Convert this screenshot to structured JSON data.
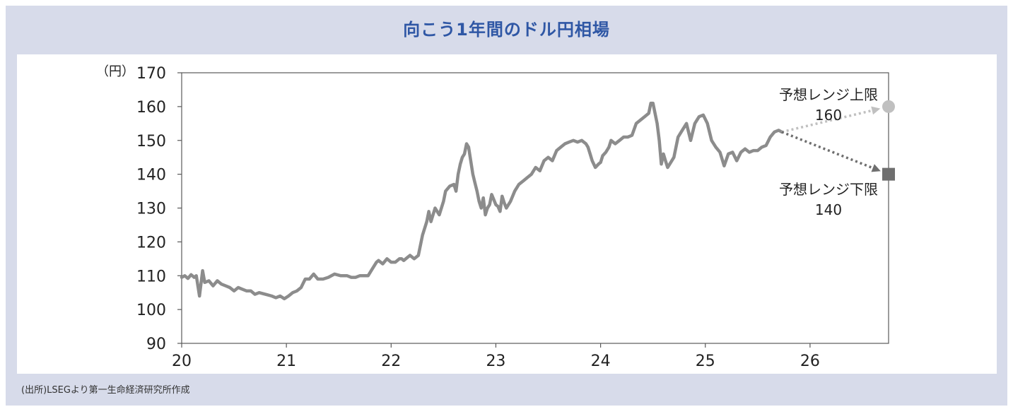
{
  "title": "向こう1年間のドル円相場",
  "source_note": "(出所)LSEGより第一生命経済研究所作成",
  "colors": {
    "frame_bg": "#d7dbea",
    "title": "#2f57a5",
    "line": "#8c8c8c",
    "upper_forecast": "#c0c0c0",
    "lower_forecast": "#6f6f6f"
  },
  "chart_data": {
    "type": "line",
    "title": "向こう1年間のドル円相場",
    "y_unit_label": "（円）",
    "ylim": [
      90,
      170
    ],
    "xlim": [
      20,
      26.75
    ],
    "y_ticks": [
      90,
      100,
      110,
      120,
      130,
      140,
      150,
      160,
      170
    ],
    "x_ticks": [
      20,
      21,
      22,
      23,
      24,
      25,
      26
    ],
    "x_tick_labels": [
      "20",
      "21",
      "22",
      "23",
      "24",
      "25",
      "26"
    ],
    "grid": false,
    "series": [
      {
        "values": [
          [
            20.0,
            109.5
          ],
          [
            20.03,
            110
          ],
          [
            20.06,
            109.2
          ],
          [
            20.09,
            110.3
          ],
          [
            20.12,
            109.5
          ],
          [
            20.14,
            110
          ],
          [
            20.17,
            104
          ],
          [
            20.2,
            111.5
          ],
          [
            20.22,
            108
          ],
          [
            20.26,
            108.5
          ],
          [
            20.3,
            107
          ],
          [
            20.34,
            108.5
          ],
          [
            20.38,
            107.5
          ],
          [
            20.42,
            107
          ],
          [
            20.46,
            106.5
          ],
          [
            20.5,
            105.5
          ],
          [
            20.54,
            106.5
          ],
          [
            20.58,
            106
          ],
          [
            20.62,
            105.5
          ],
          [
            20.66,
            105.5
          ],
          [
            20.7,
            104.5
          ],
          [
            20.74,
            105
          ],
          [
            20.8,
            104.5
          ],
          [
            20.86,
            104
          ],
          [
            20.9,
            103.5
          ],
          [
            20.94,
            104
          ],
          [
            20.98,
            103.2
          ],
          [
            21.02,
            104
          ],
          [
            21.06,
            105
          ],
          [
            21.1,
            105.5
          ],
          [
            21.14,
            106.5
          ],
          [
            21.18,
            109
          ],
          [
            21.22,
            109
          ],
          [
            21.26,
            110.5
          ],
          [
            21.3,
            109
          ],
          [
            21.35,
            109
          ],
          [
            21.4,
            109.5
          ],
          [
            21.46,
            110.5
          ],
          [
            21.52,
            110
          ],
          [
            21.58,
            110
          ],
          [
            21.62,
            109.5
          ],
          [
            21.66,
            109.5
          ],
          [
            21.7,
            110
          ],
          [
            21.74,
            110
          ],
          [
            21.78,
            110
          ],
          [
            21.82,
            112
          ],
          [
            21.86,
            114
          ],
          [
            21.88,
            114.5
          ],
          [
            21.92,
            113.5
          ],
          [
            21.96,
            115
          ],
          [
            22.0,
            114
          ],
          [
            22.04,
            114
          ],
          [
            22.08,
            115
          ],
          [
            22.1,
            115
          ],
          [
            22.12,
            114.5
          ],
          [
            22.16,
            115.5
          ],
          [
            22.18,
            116
          ],
          [
            22.22,
            115
          ],
          [
            22.26,
            116
          ],
          [
            22.3,
            122
          ],
          [
            22.34,
            126
          ],
          [
            22.36,
            129
          ],
          [
            22.38,
            126
          ],
          [
            22.42,
            130
          ],
          [
            22.46,
            128
          ],
          [
            22.5,
            132
          ],
          [
            22.52,
            135
          ],
          [
            22.56,
            136.5
          ],
          [
            22.6,
            137
          ],
          [
            22.62,
            135
          ],
          [
            22.64,
            140
          ],
          [
            22.66,
            143
          ],
          [
            22.68,
            145
          ],
          [
            22.7,
            146
          ],
          [
            22.72,
            149
          ],
          [
            22.74,
            148
          ],
          [
            22.76,
            144
          ],
          [
            22.78,
            140
          ],
          [
            22.8,
            137.5
          ],
          [
            22.82,
            135
          ],
          [
            22.84,
            132
          ],
          [
            22.86,
            130
          ],
          [
            22.88,
            133
          ],
          [
            22.9,
            128
          ],
          [
            22.92,
            130
          ],
          [
            22.94,
            131
          ],
          [
            22.96,
            134
          ],
          [
            22.98,
            132.5
          ],
          [
            23.0,
            131
          ],
          [
            23.02,
            130.5
          ],
          [
            23.04,
            129
          ],
          [
            23.06,
            133.5
          ],
          [
            23.08,
            131.5
          ],
          [
            23.1,
            130
          ],
          [
            23.14,
            132
          ],
          [
            23.18,
            135
          ],
          [
            23.22,
            137
          ],
          [
            23.26,
            138
          ],
          [
            23.3,
            139
          ],
          [
            23.34,
            140
          ],
          [
            23.38,
            142
          ],
          [
            23.42,
            141
          ],
          [
            23.46,
            144
          ],
          [
            23.5,
            145
          ],
          [
            23.54,
            144
          ],
          [
            23.58,
            147
          ],
          [
            23.62,
            148
          ],
          [
            23.66,
            149
          ],
          [
            23.7,
            149.5
          ],
          [
            23.74,
            150
          ],
          [
            23.78,
            149.5
          ],
          [
            23.82,
            150
          ],
          [
            23.86,
            149
          ],
          [
            23.88,
            148
          ],
          [
            23.9,
            146
          ],
          [
            23.92,
            144
          ],
          [
            23.95,
            142
          ],
          [
            23.98,
            143
          ],
          [
            24.0,
            143.5
          ],
          [
            24.02,
            145.5
          ],
          [
            24.05,
            146.5
          ],
          [
            24.08,
            148
          ],
          [
            24.1,
            150
          ],
          [
            24.14,
            149
          ],
          [
            24.18,
            150
          ],
          [
            24.22,
            151
          ],
          [
            24.26,
            151
          ],
          [
            24.3,
            151.5
          ],
          [
            24.34,
            155
          ],
          [
            24.38,
            156
          ],
          [
            24.42,
            157
          ],
          [
            24.46,
            158
          ],
          [
            24.48,
            161
          ],
          [
            24.5,
            161
          ],
          [
            24.54,
            155
          ],
          [
            24.56,
            150
          ],
          [
            24.58,
            143
          ],
          [
            24.6,
            146
          ],
          [
            24.62,
            144
          ],
          [
            24.64,
            142
          ],
          [
            24.66,
            143
          ],
          [
            24.7,
            145
          ],
          [
            24.74,
            151
          ],
          [
            24.78,
            153
          ],
          [
            24.82,
            155
          ],
          [
            24.86,
            150
          ],
          [
            24.9,
            155
          ],
          [
            24.94,
            157
          ],
          [
            24.98,
            157.5
          ],
          [
            25.02,
            155
          ],
          [
            25.06,
            150
          ],
          [
            25.1,
            148
          ],
          [
            25.14,
            146.5
          ],
          [
            25.18,
            142.5
          ],
          [
            25.22,
            146
          ],
          [
            25.26,
            146.5
          ],
          [
            25.3,
            144
          ],
          [
            25.34,
            146.5
          ],
          [
            25.38,
            147.5
          ],
          [
            25.42,
            146.5
          ],
          [
            25.46,
            147
          ],
          [
            25.5,
            147
          ],
          [
            25.54,
            148
          ],
          [
            25.58,
            148.5
          ],
          [
            25.62,
            151
          ],
          [
            25.66,
            152.5
          ],
          [
            25.7,
            153
          ],
          [
            25.73,
            152.5
          ]
        ]
      }
    ],
    "forecast": {
      "start": [
        25.73,
        152.5
      ],
      "end_x": 26.75,
      "upper": {
        "label": "予想レンジ上限",
        "value_label": "160",
        "value": 160
      },
      "lower": {
        "label": "予想レンジ下限",
        "value_label": "140",
        "value": 140
      }
    }
  }
}
